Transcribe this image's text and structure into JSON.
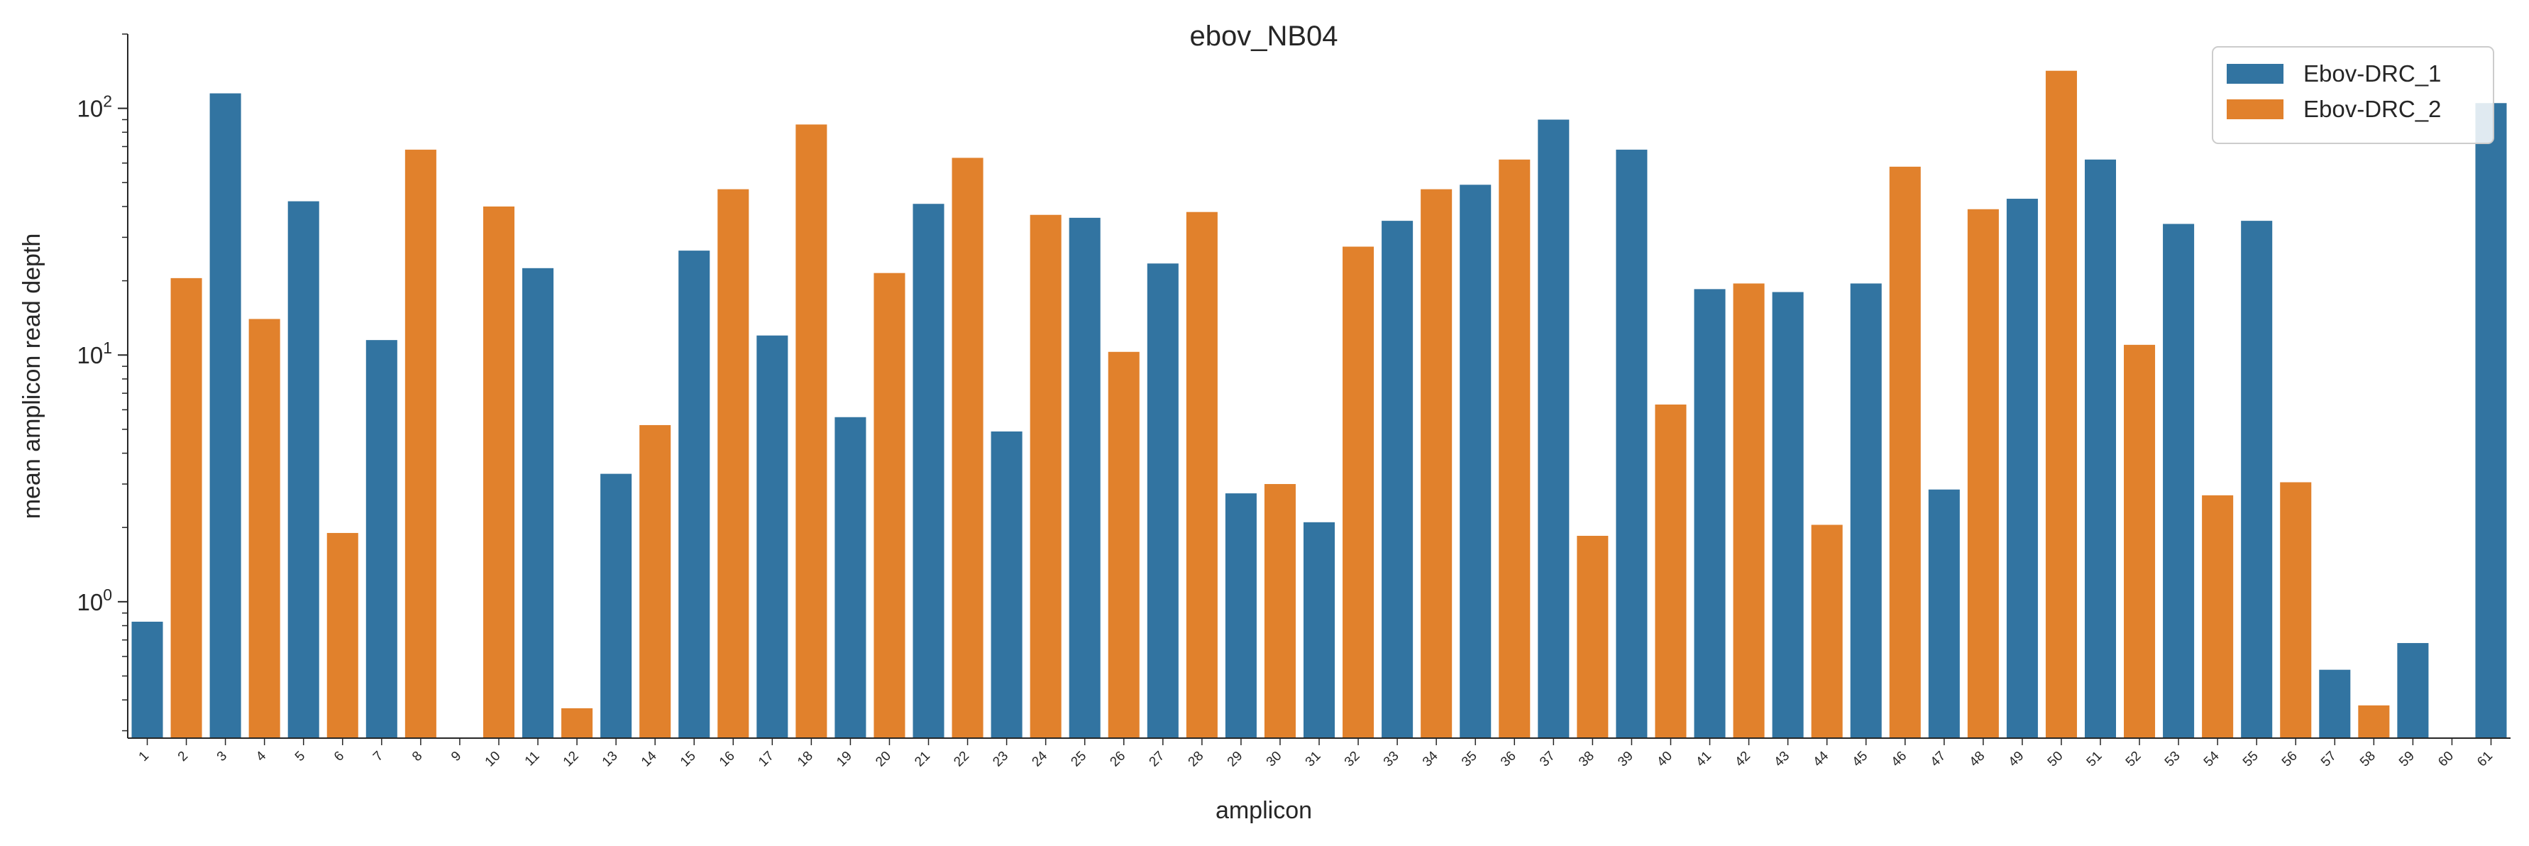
{
  "chart_data": {
    "type": "bar",
    "title": "ebov_NB04",
    "xlabel": "amplicon",
    "ylabel": "mean amplicon read depth",
    "yscale": "log",
    "ylim": [
      0.28,
      200
    ],
    "yticks": [
      {
        "value": 1,
        "base": "10",
        "exp": "0"
      },
      {
        "value": 10,
        "base": "10",
        "exp": "1"
      },
      {
        "value": 100,
        "base": "10",
        "exp": "2"
      }
    ],
    "grid": false,
    "legend_position": "top-right",
    "categories": [
      "1",
      "2",
      "3",
      "4",
      "5",
      "6",
      "7",
      "8",
      "9",
      "10",
      "11",
      "12",
      "13",
      "14",
      "15",
      "16",
      "17",
      "18",
      "19",
      "20",
      "21",
      "22",
      "23",
      "24",
      "25",
      "26",
      "27",
      "28",
      "29",
      "30",
      "31",
      "32",
      "33",
      "34",
      "35",
      "36",
      "37",
      "38",
      "39",
      "40",
      "41",
      "42",
      "43",
      "44",
      "45",
      "46",
      "47",
      "48",
      "49",
      "50",
      "51",
      "52",
      "53",
      "54",
      "55",
      "56",
      "57",
      "58",
      "59",
      "60",
      "61"
    ],
    "series": [
      {
        "name": "Ebov-DRC_1",
        "color": "#3274a1",
        "values": [
          0.83,
          null,
          115,
          null,
          42,
          null,
          11.5,
          null,
          null,
          null,
          22.5,
          null,
          3.3,
          null,
          26.5,
          null,
          12,
          null,
          5.6,
          null,
          41,
          null,
          4.9,
          null,
          36,
          null,
          23.5,
          null,
          2.75,
          null,
          2.1,
          null,
          35,
          null,
          49,
          null,
          90,
          null,
          68,
          null,
          18.5,
          null,
          18,
          null,
          19.5,
          null,
          2.85,
          null,
          43,
          null,
          62,
          null,
          34,
          null,
          35,
          null,
          0.53,
          null,
          0.68,
          null,
          105
        ]
      },
      {
        "name": "Ebov-DRC_2",
        "color": "#e1812c",
        "values": [
          null,
          20.5,
          null,
          14,
          null,
          1.9,
          null,
          68,
          null,
          40,
          null,
          0.37,
          null,
          5.2,
          null,
          47,
          null,
          86,
          null,
          21.5,
          null,
          63,
          null,
          37,
          null,
          10.3,
          null,
          38,
          null,
          3.0,
          null,
          27.5,
          null,
          47,
          null,
          62,
          null,
          1.85,
          null,
          6.3,
          null,
          19.5,
          null,
          2.05,
          null,
          58,
          null,
          39,
          null,
          142,
          null,
          11,
          null,
          2.7,
          null,
          3.05,
          null,
          0.38,
          null,
          null,
          null
        ]
      }
    ]
  }
}
